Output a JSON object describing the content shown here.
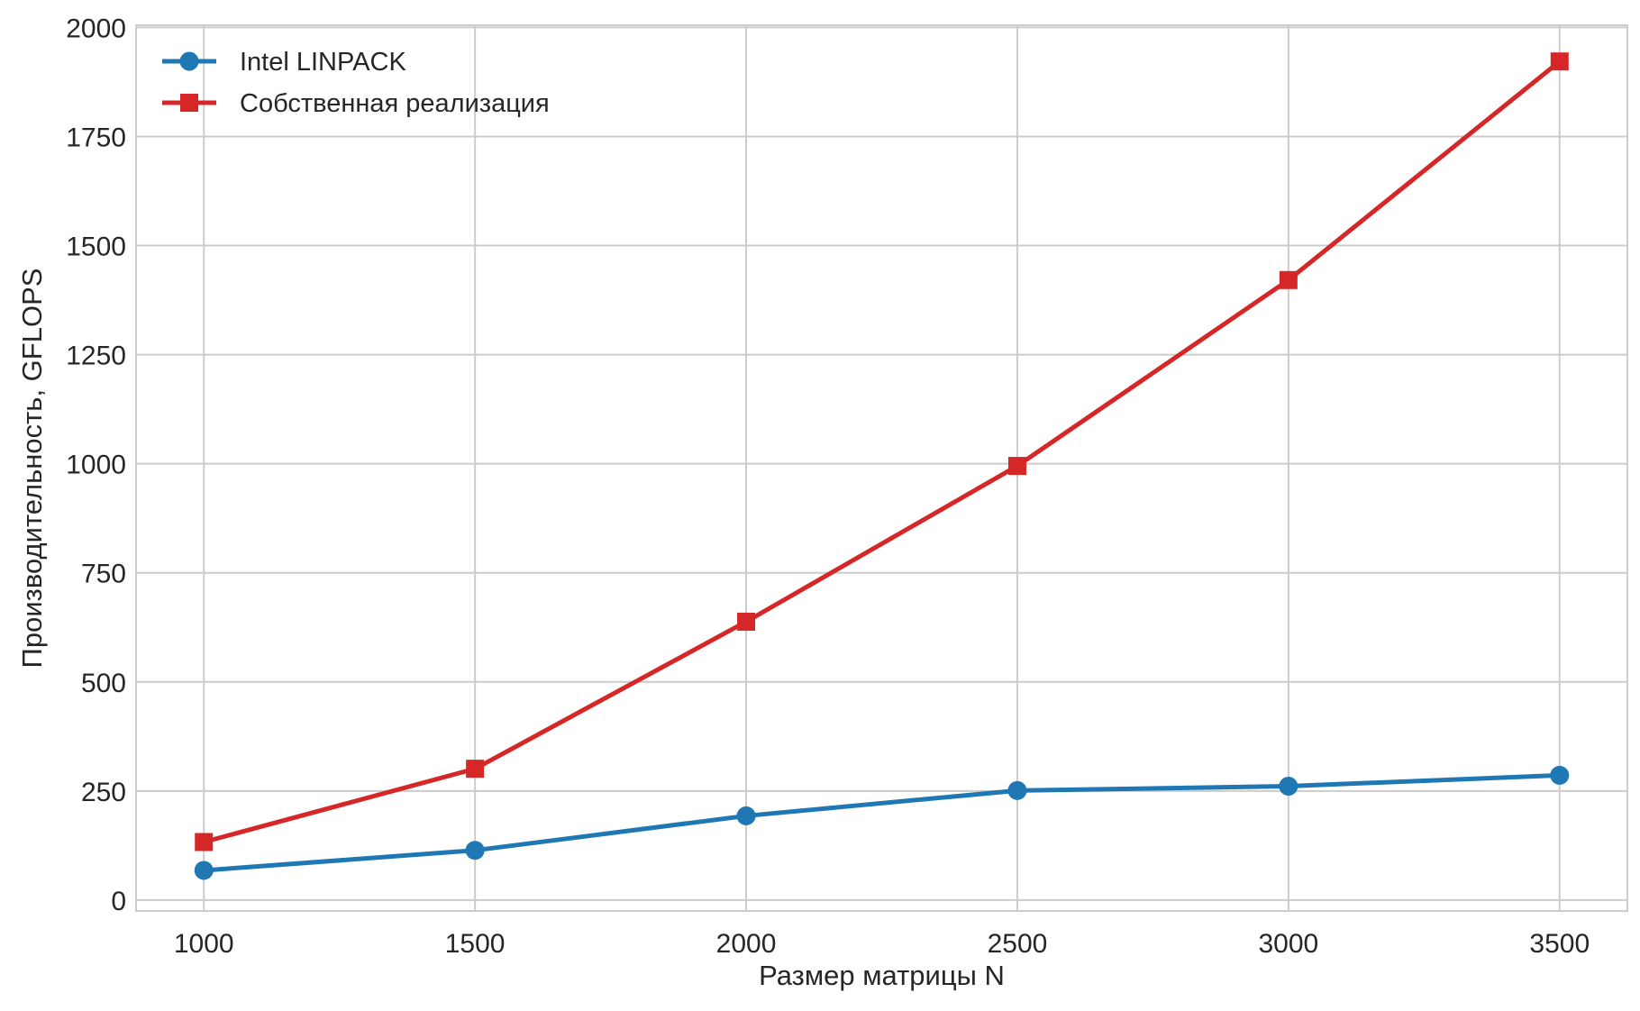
{
  "chart_data": {
    "type": "line",
    "title": "",
    "xlabel": "Размер матрицы N",
    "ylabel": "Производительность, GFLOPS",
    "x": [
      1000,
      1500,
      2000,
      2500,
      3000,
      3500
    ],
    "xlim": [
      875,
      3625
    ],
    "ylim": [
      -25,
      2005
    ],
    "xticks": [
      1000,
      1500,
      2000,
      2500,
      3000,
      3500
    ],
    "yticks": [
      0,
      250,
      500,
      750,
      1000,
      1250,
      1500,
      1750,
      2000
    ],
    "grid": true,
    "legend": "top-left",
    "series": [
      {
        "name": "Intel LINPACK",
        "marker": "circle",
        "color": "#1f77b4",
        "values": [
          68,
          114,
          193,
          251,
          261,
          286
        ]
      },
      {
        "name": "Собственная реализация",
        "marker": "square",
        "color": "#d62728",
        "values": [
          133,
          301,
          638,
          995,
          1421,
          1922
        ]
      }
    ]
  }
}
